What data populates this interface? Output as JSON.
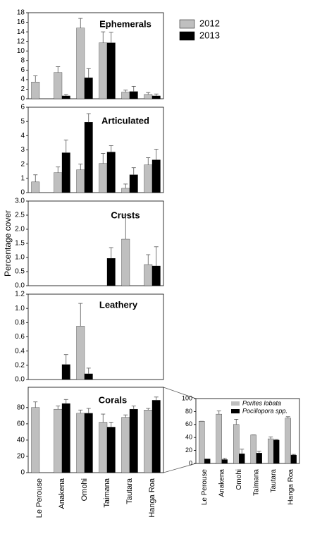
{
  "y_axis_label": "Percentage cover",
  "chart_data": [
    {
      "type": "bar",
      "title": "Ephemerals",
      "ylim": [
        0,
        18
      ],
      "yticks": [
        0,
        2,
        4,
        6,
        8,
        10,
        12,
        14,
        16,
        18
      ],
      "legend": "upper right",
      "series": [
        {
          "name": "2012",
          "color": "#bfbfbf",
          "values": [
            3.5,
            5.5,
            14.8,
            11.7,
            1.4,
            0.9
          ],
          "errors": [
            1.3,
            1.2,
            2.0,
            2.3,
            0.4,
            0.4
          ]
        },
        {
          "name": "2013",
          "color": "#000000",
          "values": [
            null,
            0.6,
            4.4,
            11.7,
            1.5,
            0.6
          ],
          "errors": [
            null,
            0.3,
            1.9,
            2.2,
            1.1,
            0.4
          ]
        }
      ]
    },
    {
      "type": "bar",
      "title": "Articulated",
      "ylim": [
        0,
        6
      ],
      "yticks": [
        0,
        1,
        2,
        3,
        4,
        5,
        6
      ],
      "series": [
        {
          "color": "#bfbfbf",
          "values": [
            0.75,
            1.4,
            1.6,
            2.05,
            0.3,
            1.95
          ],
          "errors": [
            0.5,
            0.4,
            0.4,
            0.7,
            0.3,
            0.5
          ]
        },
        {
          "color": "#000000",
          "values": [
            null,
            2.8,
            4.95,
            2.85,
            1.25,
            2.3
          ],
          "errors": [
            null,
            0.9,
            0.6,
            0.45,
            0.5,
            0.75
          ]
        }
      ]
    },
    {
      "type": "bar",
      "title": "Crusts",
      "ylim": [
        0,
        3
      ],
      "yticks": [
        {
          "value": 0,
          "label": "0.0"
        },
        0.5,
        {
          "value": 1,
          "label": "1.0"
        },
        1.5,
        {
          "value": 2,
          "label": "2.0"
        },
        2.5,
        {
          "value": 3,
          "label": "3.0"
        }
      ],
      "series": [
        {
          "color": "#bfbfbf",
          "values": [
            null,
            null,
            null,
            null,
            1.65,
            0.75
          ],
          "errors": [
            null,
            null,
            null,
            null,
            0.85,
            0.35
          ]
        },
        {
          "color": "#000000",
          "values": [
            null,
            null,
            null,
            0.97,
            null,
            0.7
          ],
          "errors": [
            null,
            null,
            null,
            0.38,
            null,
            0.68
          ]
        }
      ]
    },
    {
      "type": "bar",
      "title": "Leathery",
      "ylim": [
        0,
        1.2
      ],
      "yticks": [
        {
          "value": 0,
          "label": "0.0"
        },
        0.2,
        0.4,
        0.6,
        0.8,
        {
          "value": 1,
          "label": "1.0"
        },
        1.2
      ],
      "series": [
        {
          "color": "#bfbfbf",
          "values": [
            null,
            null,
            0.75,
            null,
            null,
            null
          ],
          "errors": [
            null,
            null,
            0.32,
            null,
            null,
            null
          ]
        },
        {
          "color": "#000000",
          "values": [
            null,
            0.21,
            0.08,
            null,
            null,
            null
          ],
          "errors": [
            null,
            0.14,
            0.08,
            null,
            null,
            null
          ]
        }
      ]
    },
    {
      "type": "bar",
      "title": "Corals",
      "ylim": [
        0,
        105
      ],
      "yticks": [
        0,
        20,
        40,
        60,
        80
      ],
      "categories": [
        "Le Perouse",
        "Anakena",
        "Omohi",
        "Taimana",
        "Tautara",
        "Hanga Roa"
      ],
      "series": [
        {
          "color": "#bfbfbf",
          "values": [
            80,
            78,
            73,
            62,
            68,
            77
          ],
          "errors": [
            7,
            4,
            4,
            10,
            3,
            2
          ]
        },
        {
          "color": "#000000",
          "values": [
            null,
            85,
            73,
            56,
            78,
            89
          ],
          "errors": [
            null,
            5,
            6,
            6,
            4,
            4
          ]
        }
      ]
    },
    {
      "type": "bar",
      "ylim": [
        0,
        100
      ],
      "yticks": [
        0,
        20,
        40,
        60,
        80,
        100
      ],
      "legend": "upper right",
      "categories": [
        "Le Perouse",
        "Anakena",
        "Omohi",
        "Taimana",
        "Tautara",
        "Hanga Roa"
      ],
      "series": [
        {
          "name": "Porites lobata",
          "color": "#bfbfbf",
          "values": [
            65,
            76,
            60,
            44,
            38,
            70
          ],
          "errors": [
            0,
            5,
            8,
            0,
            3,
            2
          ]
        },
        {
          "name": "Pocillopora spp.",
          "color": "#000000",
          "values": [
            7,
            6,
            15,
            16,
            36,
            13
          ],
          "errors": [
            0,
            2,
            7,
            3,
            1,
            1
          ]
        }
      ]
    }
  ]
}
